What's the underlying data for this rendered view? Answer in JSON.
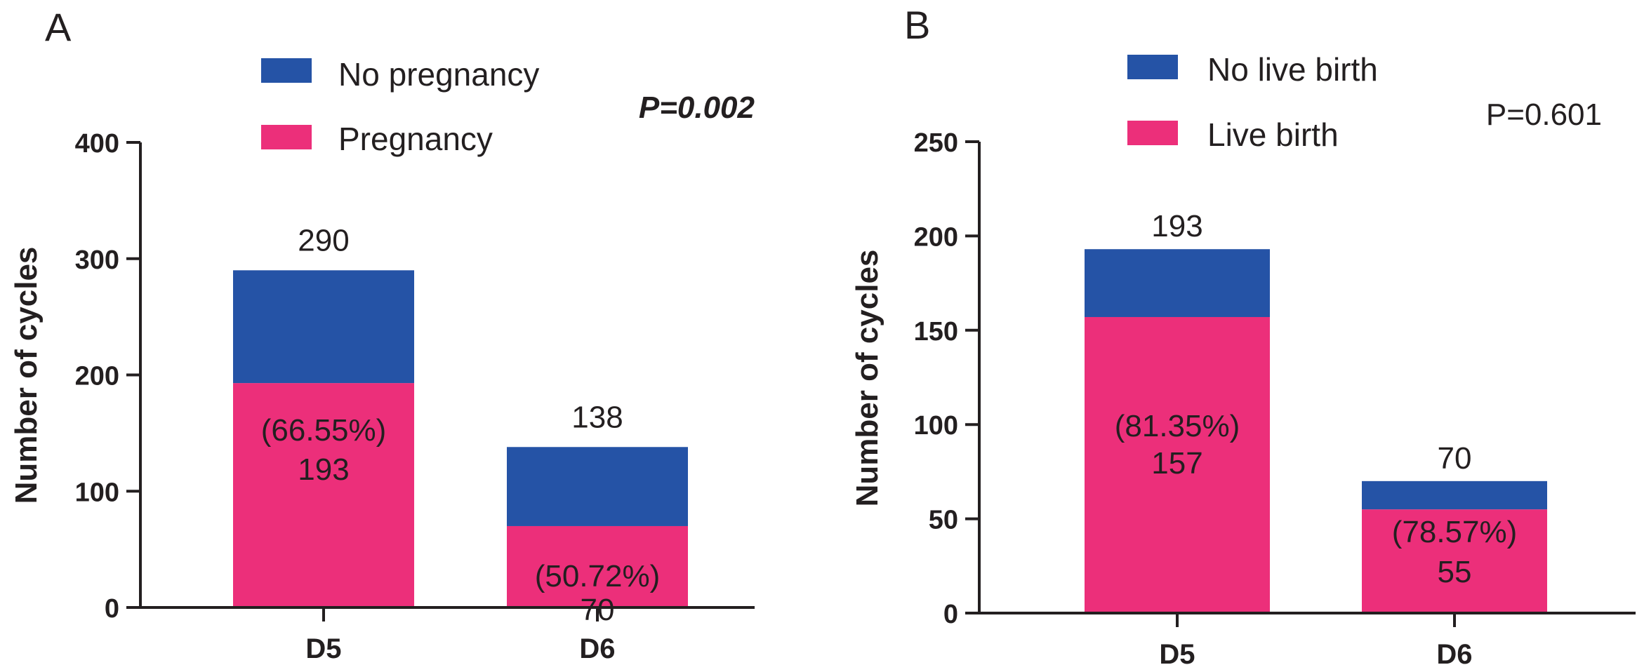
{
  "chart_data": [
    {
      "type": "bar",
      "stacked": true,
      "panel": "A",
      "categories": [
        "D5",
        "D6"
      ],
      "series": [
        {
          "name": "Pregnancy",
          "values": [
            193,
            70
          ],
          "color": "#ec2f7a"
        },
        {
          "name": "No pregnancy",
          "values": [
            97,
            68
          ],
          "color": "#2553a6"
        }
      ],
      "totals": [
        "290",
        "138"
      ],
      "percent_labels": [
        "(66.55%)",
        "(50.72%)"
      ],
      "count_labels": [
        "193",
        "70"
      ],
      "ylabel": "Number of cycles",
      "ylim": [
        0,
        400
      ],
      "yticks": [
        "0",
        "100",
        "200",
        "300",
        "400"
      ],
      "p_value": "P=0.002",
      "legend": [
        "No pregnancy",
        "Pregnancy"
      ],
      "legend_position": "top"
    },
    {
      "type": "bar",
      "stacked": true,
      "panel": "B",
      "categories": [
        "D5",
        "D6"
      ],
      "series": [
        {
          "name": "Live birth",
          "values": [
            157,
            55
          ],
          "color": "#ec2f7a"
        },
        {
          "name": "No live birth",
          "values": [
            36,
            15
          ],
          "color": "#2553a6"
        }
      ],
      "totals": [
        "193",
        "70"
      ],
      "percent_labels": [
        "(81.35%)",
        "(78.57%)"
      ],
      "count_labels": [
        "157",
        "55"
      ],
      "ylabel": "Number of cycles",
      "ylim": [
        0,
        250
      ],
      "yticks": [
        "0",
        "50",
        "100",
        "150",
        "200",
        "250"
      ],
      "p_value": "P=0.601",
      "legend": [
        "No live birth",
        "Live birth"
      ],
      "legend_position": "top"
    }
  ]
}
